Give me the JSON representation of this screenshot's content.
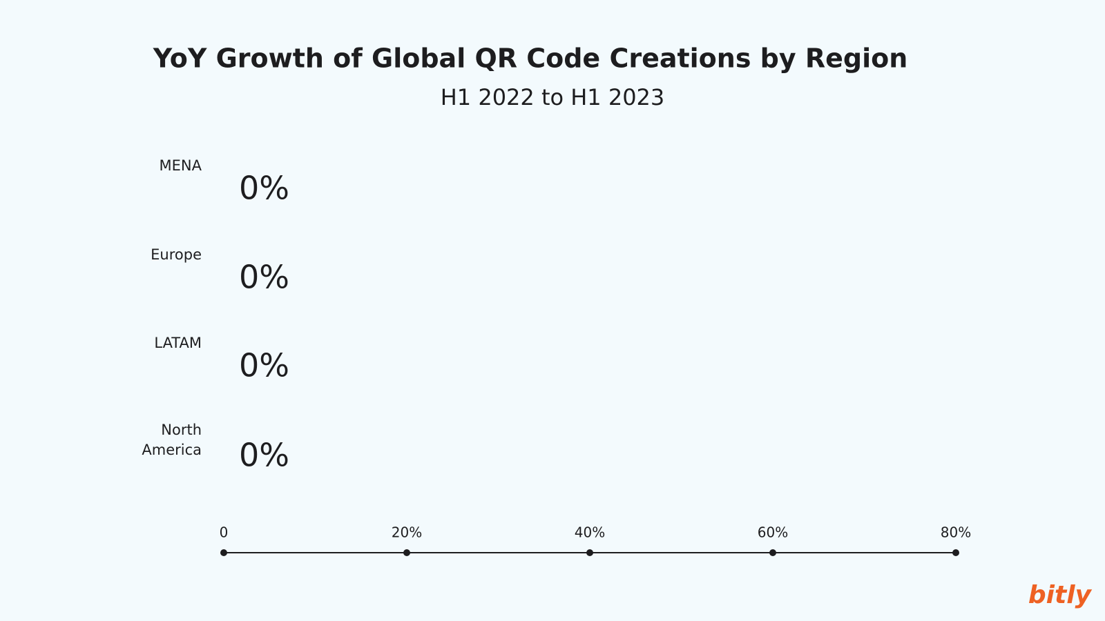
{
  "chart_data": {
    "type": "hbar",
    "title": "YoY Growth of Global QR Code Creations by Region",
    "subtitle": "H1 2022 to H1 2023",
    "categories": [
      "MENA",
      "Europe",
      "LATAM",
      "North America"
    ],
    "values": [
      0,
      0,
      0,
      0
    ],
    "value_labels": [
      "0%",
      "0%",
      "0%",
      "0%"
    ],
    "color": "#ee6123",
    "xlim": [
      0,
      80
    ],
    "xticks": [
      0,
      {
        "value": 20,
        "label": "20%"
      },
      {
        "value": 40,
        "label": "40%"
      },
      {
        "value": 60,
        "label": "60%"
      },
      {
        "value": 80,
        "label": "80%"
      }
    ]
  },
  "logo": "bitly"
}
